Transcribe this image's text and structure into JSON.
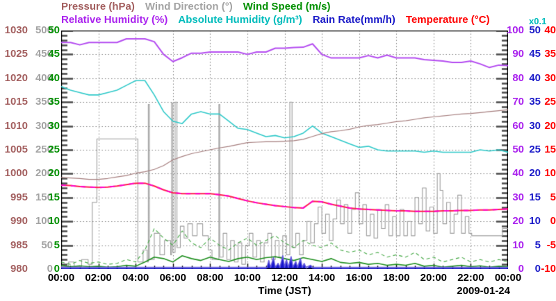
{
  "legend": {
    "row1": [
      {
        "id": "pressure",
        "label": "Pressure (hPa)",
        "color": "#a35f5f"
      },
      {
        "id": "wind-direction",
        "label": "Wind Direction (°)",
        "color": "#a3a3a3"
      },
      {
        "id": "wind-speed",
        "label": "Wind Speed (m/s)",
        "color": "#009000"
      }
    ],
    "row2": [
      {
        "id": "relative-humidity",
        "label": "Relative Humidity (%)",
        "color": "#aa22ee"
      },
      {
        "id": "absolute-humidity",
        "label": "Absolute Humidity (g/m³)",
        "color": "#00bcbc"
      },
      {
        "id": "rain-rate",
        "label": "Rain Rate(mm/h)",
        "color": "#1a1ac8"
      },
      {
        "id": "temperature",
        "label": "Temperature (°C)",
        "color": "#ff0000"
      }
    ]
  },
  "multiplier": {
    "text": "x0.1",
    "color": "#00bcbc",
    "applies_to": "absolute_humidity axis (relative humidity scale × 0.1 g/m³)"
  },
  "x_axis": {
    "title": "Time (JST)",
    "date": "2009-01-24",
    "tick_labels": [
      "00:00",
      "02:00",
      "04:00",
      "06:00",
      "08:00",
      "10:00",
      "12:00",
      "14:00",
      "16:00",
      "18:00",
      "20:00",
      "22:00",
      "00:00"
    ],
    "range_hours": [
      0,
      24
    ]
  },
  "chart_data": {
    "type": "line",
    "title": "Weather station time series 2009-01-24",
    "grid": "dotted major grid, ruler-style minor ticks on left and right axes",
    "axes_left": [
      {
        "id": "pressure",
        "label": "Pressure (hPa)",
        "color": "#a35f5f",
        "min": 980,
        "max": 1030,
        "ticks": [
          1030,
          1025,
          1020,
          1015,
          1010,
          1005,
          1000,
          995,
          990,
          985,
          980
        ]
      },
      {
        "id": "wind_direction",
        "label": "Wind Direction (°)",
        "color": "#a3a3a3",
        "min": 0,
        "max": 500,
        "ticks": [
          500,
          450,
          400,
          350,
          300,
          250,
          200,
          150,
          100,
          50,
          0
        ]
      },
      {
        "id": "wind_speed",
        "label": "Wind Speed (m/s)",
        "color": "#009000",
        "min": 0,
        "max": 50,
        "ticks": [
          50,
          45,
          40,
          35,
          30,
          25,
          20,
          15,
          10,
          5,
          0
        ]
      }
    ],
    "axes_right": [
      {
        "id": "relative_humidity",
        "label": "Relative Humidity (%)",
        "color": "#aa22ee",
        "min": 0,
        "max": 100,
        "ticks": [
          100,
          90,
          80,
          70,
          60,
          50,
          40,
          30,
          20,
          10,
          0
        ]
      },
      {
        "id": "rain_rate",
        "label": "Rain Rate (mm/h)",
        "color": "#1a1ac8",
        "min": 0,
        "max": 50,
        "ticks": [
          50,
          45,
          40,
          35,
          30,
          25,
          20,
          15,
          10,
          5,
          0
        ]
      },
      {
        "id": "temperature",
        "label": "Temperature (°C)",
        "color": "#ff0000",
        "min": -10,
        "max": 40,
        "ticks": [
          40,
          35,
          30,
          25,
          20,
          15,
          10,
          5,
          0,
          -5,
          -10
        ]
      },
      {
        "id": "absolute_humidity",
        "label": "Absolute Humidity (g/m³) x0.1",
        "color": "#00bcbc",
        "min": 0,
        "max": 10,
        "ticks": []
      }
    ],
    "series": [
      {
        "id": "wind_direction",
        "axis": "wind_direction",
        "color": "#9c9c9c",
        "width": 1.1,
        "style": "step",
        "points": [
          [
            0,
            5
          ],
          [
            0.4,
            15
          ],
          [
            0.7,
            5
          ],
          [
            1.1,
            20
          ],
          [
            1.45,
            10
          ],
          [
            1.67,
            140
          ],
          [
            1.92,
            273
          ],
          [
            4.05,
            273
          ],
          [
            4.12,
            15
          ],
          [
            4.4,
            40
          ],
          [
            4.62,
            15
          ],
          [
            4.68,
            345
          ],
          [
            4.74,
            20
          ],
          [
            5.0,
            75
          ],
          [
            5.3,
            30
          ],
          [
            5.55,
            60
          ],
          [
            5.88,
            30
          ],
          [
            5.93,
            348
          ],
          [
            6.0,
            35
          ],
          [
            6.12,
            350
          ],
          [
            6.22,
            45
          ],
          [
            6.4,
            90
          ],
          [
            6.6,
            65
          ],
          [
            6.8,
            95
          ],
          [
            7.05,
            70
          ],
          [
            7.3,
            95
          ],
          [
            7.6,
            70
          ],
          [
            7.9,
            40
          ],
          [
            8.1,
            20
          ],
          [
            8.42,
            20
          ],
          [
            8.47,
            345
          ],
          [
            8.52,
            25
          ],
          [
            8.7,
            75
          ],
          [
            8.9,
            20
          ],
          [
            9.1,
            60
          ],
          [
            9.3,
            15
          ],
          [
            9.5,
            55
          ],
          [
            9.7,
            10
          ],
          [
            9.9,
            50
          ],
          [
            10.1,
            75
          ],
          [
            10.3,
            25
          ],
          [
            10.5,
            60
          ],
          [
            10.7,
            15
          ],
          [
            10.9,
            55
          ],
          [
            11.1,
            75
          ],
          [
            11.3,
            20
          ],
          [
            11.5,
            60
          ],
          [
            11.7,
            25
          ],
          [
            11.9,
            70
          ],
          [
            12.1,
            30
          ],
          [
            12.28,
            350
          ],
          [
            12.4,
            45
          ],
          [
            12.6,
            75
          ],
          [
            12.8,
            30
          ],
          [
            13.0,
            60
          ],
          [
            13.2,
            100
          ],
          [
            13.4,
            55
          ],
          [
            13.6,
            95
          ],
          [
            13.8,
            130
          ],
          [
            14.0,
            75
          ],
          [
            14.2,
            115
          ],
          [
            14.4,
            60
          ],
          [
            14.6,
            105
          ],
          [
            14.8,
            145
          ],
          [
            15.0,
            95
          ],
          [
            15.2,
            135
          ],
          [
            15.4,
            75
          ],
          [
            15.6,
            125
          ],
          [
            15.8,
            160
          ],
          [
            16.0,
            95
          ],
          [
            16.2,
            135
          ],
          [
            16.4,
            70
          ],
          [
            16.6,
            115
          ],
          [
            16.8,
            65
          ],
          [
            17.0,
            125
          ],
          [
            17.2,
            85
          ],
          [
            17.4,
            135
          ],
          [
            17.6,
            70
          ],
          [
            17.8,
            110
          ],
          [
            18.0,
            70
          ],
          [
            18.2,
            125
          ],
          [
            18.4,
            70
          ],
          [
            18.6,
            100
          ],
          [
            18.8,
            70
          ],
          [
            19.0,
            150
          ],
          [
            19.2,
            95
          ],
          [
            19.4,
            170
          ],
          [
            19.6,
            80
          ],
          [
            19.8,
            130
          ],
          [
            20.0,
            75
          ],
          [
            20.2,
            200
          ],
          [
            20.35,
            165
          ],
          [
            20.5,
            95
          ],
          [
            20.7,
            140
          ],
          [
            20.9,
            75
          ],
          [
            21.1,
            115
          ],
          [
            21.3,
            155
          ],
          [
            21.5,
            75
          ],
          [
            21.7,
            110
          ],
          [
            21.9,
            75
          ],
          [
            22.05,
            70
          ],
          [
            23.5,
            70
          ],
          [
            23.7,
            85
          ],
          [
            24,
            85
          ]
        ]
      },
      {
        "id": "wind_gust",
        "axis": "wind_speed",
        "color": "#44a844",
        "width": 1.1,
        "style": "dash",
        "t_step": 0.5,
        "values": [
          1.5,
          1.0,
          1.8,
          1.2,
          1.5,
          1.0,
          1.2,
          2.0,
          1.5,
          4.0,
          8.5,
          6.5,
          5.0,
          8.0,
          5.5,
          4.5,
          6.5,
          5.0,
          4.0,
          5.5,
          6.5,
          5.0,
          6.0,
          7.0,
          5.5,
          4.5,
          6.0,
          5.0,
          4.5,
          5.5,
          4.0,
          3.5,
          4.0,
          3.0,
          3.5,
          2.5,
          3.0,
          2.5,
          3.5,
          2.0,
          2.5,
          1.5,
          2.0,
          2.5,
          1.5,
          2.0,
          1.5,
          2.0,
          1.5
        ]
      },
      {
        "id": "wind_speed",
        "axis": "wind_speed",
        "color": "#1f8f1f",
        "width": 1.6,
        "style": "line",
        "t_step": 0.5,
        "values": [
          0.8,
          0.5,
          0.7,
          0.5,
          0.6,
          0.4,
          0.5,
          0.8,
          0.6,
          1.5,
          2.5,
          2.2,
          1.5,
          2.8,
          2.2,
          1.8,
          2.5,
          2.0,
          1.6,
          2.2,
          2.5,
          2.0,
          2.4,
          2.6,
          2.2,
          1.8,
          2.4,
          2.0,
          1.6,
          2.2,
          1.4,
          1.2,
          1.4,
          1.0,
          1.2,
          0.8,
          1.0,
          0.8,
          1.2,
          0.6,
          0.8,
          0.4,
          0.6,
          0.8,
          0.5,
          0.7,
          0.4,
          0.6,
          0.5
        ]
      },
      {
        "id": "rain_rate",
        "axis": "rain_rate",
        "color": "#1515cc",
        "stroke": "#6158dd",
        "width": 1.6,
        "style": "area",
        "points": [
          [
            0,
            0
          ],
          [
            11.05,
            0
          ],
          [
            11.15,
            1.8
          ],
          [
            11.25,
            0.2
          ],
          [
            11.4,
            2.4
          ],
          [
            11.5,
            0.3
          ],
          [
            11.65,
            1.2
          ],
          [
            11.75,
            0.2
          ],
          [
            11.9,
            2.8
          ],
          [
            12.0,
            0.4
          ],
          [
            12.1,
            2.0
          ],
          [
            12.2,
            0.3
          ],
          [
            12.35,
            2.6
          ],
          [
            12.45,
            0.4
          ],
          [
            12.6,
            1.6
          ],
          [
            12.7,
            0.2
          ],
          [
            12.85,
            2.2
          ],
          [
            12.95,
            0.3
          ],
          [
            13.05,
            1.2
          ],
          [
            13.15,
            0
          ],
          [
            13.4,
            0.8
          ],
          [
            13.5,
            0
          ],
          [
            24,
            0
          ]
        ]
      },
      {
        "id": "absolute_humidity",
        "axis": "absolute_humidity",
        "color": "#2fc9c9",
        "width": 1.6,
        "style": "line",
        "t_step": 0.5,
        "values": [
          7.65,
          7.5,
          7.4,
          7.3,
          7.3,
          7.4,
          7.5,
          7.7,
          7.9,
          7.9,
          7.3,
          6.6,
          6.2,
          6.1,
          6.5,
          6.6,
          6.5,
          6.5,
          6.2,
          5.9,
          5.85,
          5.7,
          5.55,
          5.6,
          5.5,
          5.55,
          5.7,
          6.0,
          5.7,
          5.55,
          5.4,
          5.25,
          5.1,
          5.15,
          5.0,
          4.95,
          4.95,
          4.95,
          4.95,
          4.9,
          4.95,
          4.9,
          4.9,
          4.9,
          4.9,
          5.0,
          4.95,
          5.0,
          4.9
        ]
      },
      {
        "id": "pressure",
        "axis": "pressure",
        "color": "#a57d7d",
        "width": 1.2,
        "style": "line",
        "t_step": 0.5,
        "values": [
          999.2,
          999.1,
          999.0,
          998.8,
          998.8,
          999.0,
          999.3,
          999.6,
          1000.1,
          1000.4,
          1000.9,
          1001.7,
          1002.9,
          1003.6,
          1004.2,
          1004.6,
          1005.0,
          1005.4,
          1005.7,
          1006.1,
          1006.5,
          1006.6,
          1006.7,
          1006.7,
          1006.8,
          1006.9,
          1007.2,
          1007.8,
          1008.4,
          1008.8,
          1009.0,
          1009.3,
          1009.8,
          1010.1,
          1010.3,
          1010.6,
          1010.9,
          1011.1,
          1011.4,
          1011.7,
          1011.9,
          1012.1,
          1012.3,
          1012.5,
          1012.6,
          1012.8,
          1013.0,
          1013.2,
          1013.4
        ]
      },
      {
        "id": "relative_humidity",
        "axis": "relative_humidity",
        "color": "#b44cf0",
        "width": 2.0,
        "style": "line",
        "t_step": 0.5,
        "values": [
          95,
          95,
          94,
          95,
          95,
          95,
          95,
          96.5,
          96.5,
          96.5,
          95.3,
          90,
          87,
          88.6,
          90.5,
          90.5,
          91,
          91,
          91,
          91,
          90,
          91,
          91,
          92.6,
          92.6,
          92.9,
          93,
          94.4,
          90,
          88.5,
          88.5,
          88.5,
          88.5,
          89.5,
          88.5,
          89.7,
          88.5,
          88.5,
          88.5,
          87.8,
          87.5,
          87.2,
          86.6,
          86.6,
          87.2,
          86,
          84.5,
          85.5,
          85.3
        ]
      },
      {
        "id": "temperature",
        "axis": "temperature",
        "color": "#ff1e4d",
        "overlay_dash_color": "#ff00cc",
        "width": 2.0,
        "style": "line",
        "t_step": 0.5,
        "values": [
          7.6,
          7.5,
          7.3,
          7.2,
          7.1,
          7.2,
          7.4,
          7.7,
          8.0,
          8.0,
          7.4,
          6.6,
          6.0,
          5.8,
          5.8,
          5.8,
          5.8,
          5.6,
          5.3,
          4.8,
          4.3,
          3.9,
          3.6,
          3.3,
          3.1,
          2.9,
          2.8,
          4.2,
          4.1,
          3.6,
          3.2,
          2.8,
          2.6,
          2.5,
          2.4,
          2.3,
          2.2,
          2.2,
          2.1,
          2.1,
          2.1,
          2.2,
          2.2,
          2.3,
          2.3,
          2.4,
          2.4,
          2.5,
          2.6
        ]
      }
    ]
  }
}
